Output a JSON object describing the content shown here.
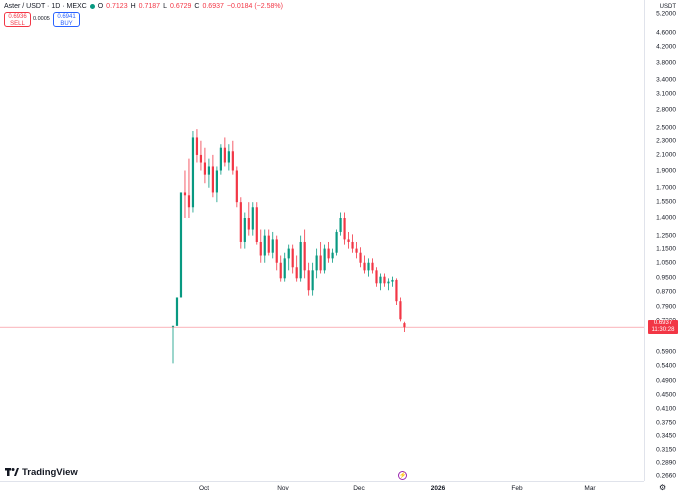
{
  "legend": {
    "symbol": "Aster / USDT · 1D · MEXC",
    "open_label": "O",
    "open": "0.7123",
    "high_label": "H",
    "high": "0.7187",
    "low_label": "L",
    "low": "0.6729",
    "close_label": "C",
    "close": "0.6937",
    "change": "−0.0184 (−2.58%)"
  },
  "trade": {
    "sell_price": "0.6936",
    "sell_label": "SELL",
    "spread": "0.0005",
    "buy_price": "0.6941",
    "buy_label": "BUY"
  },
  "currency": "USDT",
  "price_axis": {
    "scale": "log",
    "ticks": [
      "5.2000",
      "4.6000",
      "4.2000",
      "3.8000",
      "3.4000",
      "3.1000",
      "2.8000",
      "2.5000",
      "2.3000",
      "2.1000",
      "1.9000",
      "1.7000",
      "1.5500",
      "1.4000",
      "1.2500",
      "1.1500",
      "1.0500",
      "0.9500",
      "0.8700",
      "0.7900",
      "0.7200",
      "0.5900",
      "0.5400",
      "0.4900",
      "0.4500",
      "0.4100",
      "0.3750",
      "0.3450",
      "0.3150",
      "0.2890",
      "0.2660"
    ]
  },
  "current_price": {
    "price": "0.6937",
    "countdown": "11:30:28"
  },
  "time_axis": [
    "Oct",
    "Nov",
    "Dec",
    "2026",
    "Feb",
    "Mar"
  ],
  "brand": "TradingView",
  "colors": {
    "up": "#089981",
    "down": "#f23645",
    "price_line": "#f23645",
    "accent": "#2962ff"
  },
  "chart_data": {
    "type": "candlestick",
    "series": [
      {
        "name": "Aster / USDT",
        "candles": [
          {
            "o": 0.7,
            "h": 0.7,
            "l": 0.55,
            "c": 0.7
          },
          {
            "o": 0.7,
            "h": 0.84,
            "l": 0.7,
            "c": 0.84
          },
          {
            "o": 0.84,
            "h": 1.65,
            "l": 0.84,
            "c": 1.65
          },
          {
            "o": 1.65,
            "h": 1.9,
            "l": 1.4,
            "c": 1.62
          },
          {
            "o": 1.62,
            "h": 2.05,
            "l": 1.4,
            "c": 1.5
          },
          {
            "o": 1.5,
            "h": 2.45,
            "l": 1.45,
            "c": 2.35
          },
          {
            "o": 2.35,
            "h": 2.48,
            "l": 2.0,
            "c": 2.1
          },
          {
            "o": 2.1,
            "h": 2.3,
            "l": 1.9,
            "c": 2.0
          },
          {
            "o": 2.0,
            "h": 2.2,
            "l": 1.75,
            "c": 1.85
          },
          {
            "o": 1.85,
            "h": 2.05,
            "l": 1.7,
            "c": 1.95
          },
          {
            "o": 1.95,
            "h": 2.1,
            "l": 1.6,
            "c": 1.65
          },
          {
            "o": 1.65,
            "h": 1.95,
            "l": 1.55,
            "c": 1.9
          },
          {
            "o": 1.9,
            "h": 2.25,
            "l": 1.85,
            "c": 2.2
          },
          {
            "o": 2.2,
            "h": 2.35,
            "l": 1.95,
            "c": 2.0
          },
          {
            "o": 2.0,
            "h": 2.25,
            "l": 1.9,
            "c": 2.15
          },
          {
            "o": 2.15,
            "h": 2.3,
            "l": 1.85,
            "c": 1.9
          },
          {
            "o": 1.9,
            "h": 1.95,
            "l": 1.5,
            "c": 1.55
          },
          {
            "o": 1.55,
            "h": 1.6,
            "l": 1.15,
            "c": 1.2
          },
          {
            "o": 1.2,
            "h": 1.45,
            "l": 1.15,
            "c": 1.4
          },
          {
            "o": 1.4,
            "h": 1.55,
            "l": 1.25,
            "c": 1.3
          },
          {
            "o": 1.3,
            "h": 1.55,
            "l": 1.25,
            "c": 1.5
          },
          {
            "o": 1.5,
            "h": 1.55,
            "l": 1.18,
            "c": 1.2
          },
          {
            "o": 1.2,
            "h": 1.3,
            "l": 1.05,
            "c": 1.1
          },
          {
            "o": 1.1,
            "h": 1.3,
            "l": 1.05,
            "c": 1.25
          },
          {
            "o": 1.25,
            "h": 1.3,
            "l": 1.1,
            "c": 1.12
          },
          {
            "o": 1.12,
            "h": 1.28,
            "l": 1.08,
            "c": 1.22
          },
          {
            "o": 1.22,
            "h": 1.25,
            "l": 1.0,
            "c": 1.05
          },
          {
            "o": 1.05,
            "h": 1.1,
            "l": 0.93,
            "c": 0.95
          },
          {
            "o": 0.95,
            "h": 1.12,
            "l": 0.93,
            "c": 1.08
          },
          {
            "o": 1.08,
            "h": 1.18,
            "l": 1.0,
            "c": 1.15
          },
          {
            "o": 1.15,
            "h": 1.18,
            "l": 0.98,
            "c": 1.02
          },
          {
            "o": 1.02,
            "h": 1.1,
            "l": 0.93,
            "c": 0.95
          },
          {
            "o": 0.95,
            "h": 1.25,
            "l": 0.93,
            "c": 1.2
          },
          {
            "o": 1.2,
            "h": 1.3,
            "l": 0.95,
            "c": 1.0
          },
          {
            "o": 1.0,
            "h": 1.05,
            "l": 0.85,
            "c": 0.88
          },
          {
            "o": 0.88,
            "h": 1.05,
            "l": 0.85,
            "c": 1.0
          },
          {
            "o": 1.0,
            "h": 1.15,
            "l": 0.95,
            "c": 1.1
          },
          {
            "o": 1.1,
            "h": 1.2,
            "l": 0.98,
            "c": 1.0
          },
          {
            "o": 1.0,
            "h": 1.18,
            "l": 0.98,
            "c": 1.15
          },
          {
            "o": 1.15,
            "h": 1.2,
            "l": 1.05,
            "c": 1.08
          },
          {
            "o": 1.08,
            "h": 1.15,
            "l": 1.05,
            "c": 1.12
          },
          {
            "o": 1.12,
            "h": 1.3,
            "l": 1.1,
            "c": 1.28
          },
          {
            "o": 1.28,
            "h": 1.45,
            "l": 1.25,
            "c": 1.4
          },
          {
            "o": 1.4,
            "h": 1.45,
            "l": 1.18,
            "c": 1.22
          },
          {
            "o": 1.22,
            "h": 1.28,
            "l": 1.15,
            "c": 1.2
          },
          {
            "o": 1.2,
            "h": 1.26,
            "l": 1.12,
            "c": 1.15
          },
          {
            "o": 1.15,
            "h": 1.2,
            "l": 1.08,
            "c": 1.12
          },
          {
            "o": 1.12,
            "h": 1.16,
            "l": 1.02,
            "c": 1.05
          },
          {
            "o": 1.05,
            "h": 1.1,
            "l": 0.98,
            "c": 1.0
          },
          {
            "o": 1.0,
            "h": 1.08,
            "l": 0.96,
            "c": 1.05
          },
          {
            "o": 1.05,
            "h": 1.08,
            "l": 0.98,
            "c": 1.0
          },
          {
            "o": 1.0,
            "h": 1.02,
            "l": 0.9,
            "c": 0.92
          },
          {
            "o": 0.92,
            "h": 0.98,
            "l": 0.88,
            "c": 0.96
          },
          {
            "o": 0.96,
            "h": 0.98,
            "l": 0.9,
            "c": 0.92
          },
          {
            "o": 0.92,
            "h": 0.95,
            "l": 0.88,
            "c": 0.93
          },
          {
            "o": 0.93,
            "h": 0.96,
            "l": 0.9,
            "c": 0.94
          },
          {
            "o": 0.94,
            "h": 0.95,
            "l": 0.8,
            "c": 0.82
          },
          {
            "o": 0.82,
            "h": 0.84,
            "l": 0.72,
            "c": 0.73
          },
          {
            "o": 0.7123,
            "h": 0.7187,
            "l": 0.6729,
            "c": 0.6937
          }
        ]
      }
    ],
    "x_labels": [
      "Oct",
      "Nov",
      "Dec",
      "2026",
      "Feb",
      "Mar"
    ],
    "y_scale": "log",
    "ylim": [
      0.25,
      5.5
    ],
    "grid": false,
    "last_price": 0.6937
  }
}
